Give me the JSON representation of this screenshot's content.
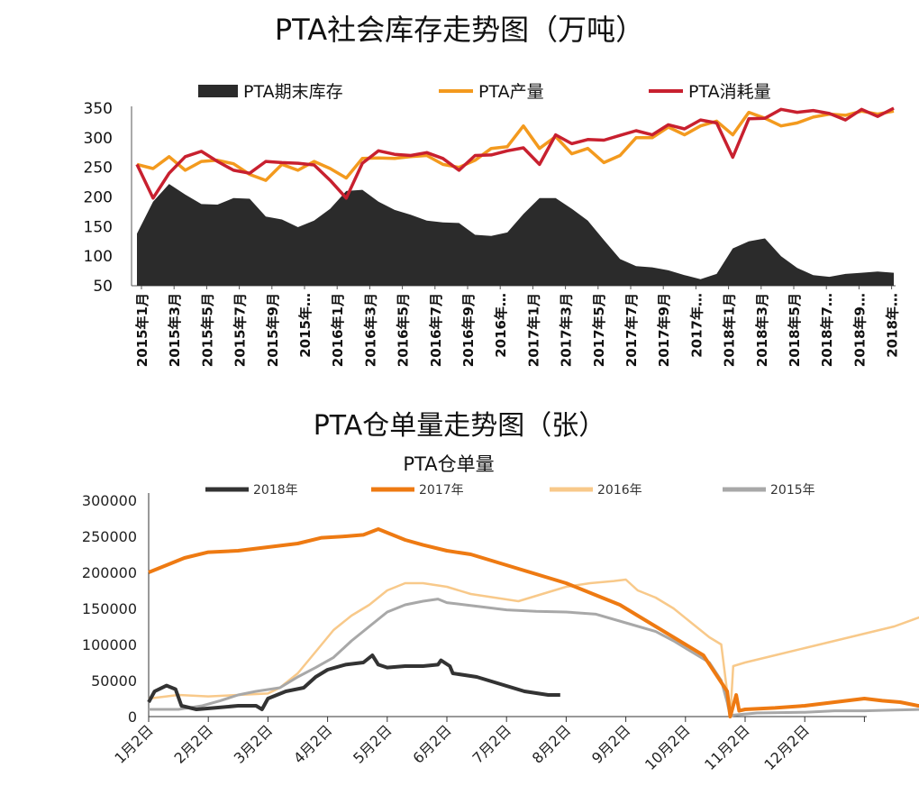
{
  "titles": {
    "top": "PTA社会库存走势图（万吨）",
    "bottom": "PTA仓单量走势图（张）"
  },
  "colors": {
    "inventory": "#2b2b2b",
    "production": "#f39a1e",
    "consumption": "#c8202f",
    "y2018": "#333333",
    "y2017": "#ee7a12",
    "y2016": "#f8c98a",
    "y2015": "#a8a8a8"
  },
  "chart_data": [
    {
      "type": "area",
      "title": "",
      "legend_position": "top",
      "ylim": [
        50,
        350
      ],
      "yticks": [
        "350",
        "300",
        "250",
        "200",
        "150",
        "100",
        "50"
      ],
      "x_tick_labels": [
        "2015年1月",
        "2015年3月",
        "2015年5月",
        "2015年7月",
        "2015年9月",
        "2015年…",
        "2016年1月",
        "2016年3月",
        "2016年5月",
        "2016年7月",
        "2016年9月",
        "2016年…",
        "2017年1月",
        "2017年3月",
        "2017年5月",
        "2017年7月",
        "2017年9月",
        "2017年…",
        "2018年1月",
        "2018年3月",
        "2018年5月",
        "2018年7…",
        "2018年9…",
        "2018年…"
      ],
      "series": [
        {
          "name": "PTA期末库存",
          "style": "area",
          "values": [
            138,
            192,
            222,
            204,
            188,
            187,
            198,
            197,
            167,
            162,
            149,
            160,
            180,
            210,
            212,
            192,
            178,
            170,
            160,
            157,
            156,
            136,
            134,
            140,
            171,
            198,
            198,
            180,
            160,
            127,
            95,
            83,
            81,
            76,
            68,
            61,
            70,
            113,
            125,
            130,
            100,
            80,
            68,
            65,
            70,
            72,
            74,
            72
          ]
        },
        {
          "name": "PTA产量",
          "style": "line",
          "values": [
            255,
            248,
            268,
            245,
            260,
            262,
            256,
            238,
            228,
            255,
            245,
            260,
            248,
            232,
            265,
            266,
            265,
            268,
            270,
            255,
            250,
            262,
            282,
            285,
            320,
            282,
            302,
            273,
            282,
            258,
            270,
            300,
            300,
            318,
            305,
            320,
            328,
            305,
            343,
            333,
            320,
            325,
            335,
            340,
            338,
            345,
            340,
            345
          ]
        },
        {
          "name": "PTA消耗量",
          "style": "line",
          "values": [
            255,
            198,
            240,
            268,
            277,
            260,
            245,
            240,
            260,
            258,
            257,
            254,
            228,
            198,
            257,
            278,
            272,
            270,
            275,
            265,
            245,
            270,
            271,
            278,
            283,
            255,
            305,
            290,
            297,
            296,
            304,
            312,
            305,
            322,
            315,
            330,
            325,
            267,
            332,
            333,
            348,
            343,
            346,
            341,
            330,
            348,
            336,
            350
          ]
        }
      ]
    },
    {
      "type": "line",
      "title": "PTA仓单量",
      "legend_position": "top",
      "ylim": [
        0,
        300000
      ],
      "yticks": [
        "300000",
        "250000",
        "200000",
        "150000",
        "100000",
        "50000",
        "0"
      ],
      "x_tick_labels": [
        "1月2日",
        "2月2日",
        "3月2日",
        "4月2日",
        "5月2日",
        "6月2日",
        "7月2日",
        "8月2日",
        "9月2日",
        "10月2日",
        "11月2日",
        "12月2日"
      ],
      "x_range_months": [
        0,
        12
      ],
      "series": [
        {
          "name": "2018年",
          "points": [
            [
              0,
              20000
            ],
            [
              0.1,
              35000
            ],
            [
              0.3,
              43000
            ],
            [
              0.45,
              38000
            ],
            [
              0.55,
              15000
            ],
            [
              0.8,
              10000
            ],
            [
              1.1,
              12000
            ],
            [
              1.5,
              15000
            ],
            [
              1.8,
              15000
            ],
            [
              1.9,
              10000
            ],
            [
              2.0,
              25000
            ],
            [
              2.3,
              35000
            ],
            [
              2.6,
              40000
            ],
            [
              2.8,
              55000
            ],
            [
              3.0,
              65000
            ],
            [
              3.3,
              72000
            ],
            [
              3.6,
              75000
            ],
            [
              3.75,
              85000
            ],
            [
              3.85,
              72000
            ],
            [
              4.0,
              68000
            ],
            [
              4.3,
              70000
            ],
            [
              4.6,
              70000
            ],
            [
              4.85,
              72000
            ],
            [
              4.9,
              78000
            ],
            [
              5.05,
              70000
            ],
            [
              5.1,
              60000
            ],
            [
              5.5,
              55000
            ],
            [
              5.9,
              45000
            ],
            [
              6.3,
              35000
            ],
            [
              6.7,
              30000
            ],
            [
              6.9,
              30000
            ]
          ]
        },
        {
          "name": "2017年",
          "points": [
            [
              0,
              200000
            ],
            [
              0.3,
              210000
            ],
            [
              0.6,
              220000
            ],
            [
              1.0,
              228000
            ],
            [
              1.5,
              230000
            ],
            [
              2.0,
              235000
            ],
            [
              2.5,
              240000
            ],
            [
              2.9,
              248000
            ],
            [
              3.3,
              250000
            ],
            [
              3.6,
              252000
            ],
            [
              3.85,
              260000
            ],
            [
              4.0,
              255000
            ],
            [
              4.3,
              245000
            ],
            [
              4.6,
              238000
            ],
            [
              5.0,
              230000
            ],
            [
              5.4,
              225000
            ],
            [
              5.8,
              215000
            ],
            [
              6.2,
              205000
            ],
            [
              6.6,
              195000
            ],
            [
              7.0,
              185000
            ],
            [
              7.3,
              175000
            ],
            [
              7.6,
              165000
            ],
            [
              7.9,
              155000
            ],
            [
              8.2,
              140000
            ],
            [
              8.5,
              125000
            ],
            [
              8.8,
              110000
            ],
            [
              9.0,
              100000
            ],
            [
              9.3,
              85000
            ],
            [
              9.5,
              60000
            ],
            [
              9.7,
              35000
            ],
            [
              9.75,
              0
            ],
            [
              9.85,
              30000
            ],
            [
              9.9,
              8000
            ],
            [
              10.0,
              10000
            ],
            [
              10.5,
              12000
            ],
            [
              11.0,
              15000
            ],
            [
              11.5,
              20000
            ],
            [
              12.0,
              25000
            ],
            [
              12.3,
              22000
            ],
            [
              12.6,
              20000
            ],
            [
              12.9,
              15000
            ],
            [
              13.2,
              14000
            ],
            [
              13.6,
              15000
            ],
            [
              13.85,
              20000
            ]
          ]
        },
        {
          "name": "2016年",
          "points": [
            [
              0,
              25000
            ],
            [
              0.5,
              30000
            ],
            [
              1.0,
              28000
            ],
            [
              1.5,
              30000
            ],
            [
              2.0,
              32000
            ],
            [
              2.2,
              40000
            ],
            [
              2.5,
              60000
            ],
            [
              2.8,
              90000
            ],
            [
              3.1,
              120000
            ],
            [
              3.4,
              140000
            ],
            [
              3.7,
              155000
            ],
            [
              4.0,
              175000
            ],
            [
              4.3,
              185000
            ],
            [
              4.6,
              185000
            ],
            [
              5.0,
              180000
            ],
            [
              5.4,
              170000
            ],
            [
              5.8,
              165000
            ],
            [
              6.2,
              160000
            ],
            [
              6.6,
              170000
            ],
            [
              7.0,
              180000
            ],
            [
              7.4,
              185000
            ],
            [
              7.8,
              188000
            ],
            [
              8.0,
              190000
            ],
            [
              8.2,
              175000
            ],
            [
              8.5,
              165000
            ],
            [
              8.8,
              150000
            ],
            [
              9.1,
              130000
            ],
            [
              9.4,
              110000
            ],
            [
              9.6,
              100000
            ],
            [
              9.75,
              0
            ],
            [
              9.8,
              70000
            ],
            [
              10.0,
              75000
            ],
            [
              10.5,
              85000
            ],
            [
              11.0,
              95000
            ],
            [
              11.5,
              105000
            ],
            [
              12.0,
              115000
            ],
            [
              12.5,
              125000
            ],
            [
              13.0,
              140000
            ],
            [
              13.5,
              160000
            ],
            [
              13.85,
              195000
            ]
          ]
        },
        {
          "name": "2015年",
          "points": [
            [
              0,
              10000
            ],
            [
              0.5,
              10000
            ],
            [
              0.9,
              15000
            ],
            [
              1.2,
              22000
            ],
            [
              1.5,
              30000
            ],
            [
              1.8,
              35000
            ],
            [
              2.2,
              40000
            ],
            [
              2.5,
              55000
            ],
            [
              2.8,
              68000
            ],
            [
              3.1,
              82000
            ],
            [
              3.4,
              105000
            ],
            [
              3.7,
              125000
            ],
            [
              4.0,
              145000
            ],
            [
              4.3,
              155000
            ],
            [
              4.6,
              160000
            ],
            [
              4.85,
              163000
            ],
            [
              5.0,
              158000
            ],
            [
              5.3,
              155000
            ],
            [
              5.6,
              152000
            ],
            [
              6.0,
              148000
            ],
            [
              6.5,
              146000
            ],
            [
              7.0,
              145000
            ],
            [
              7.5,
              142000
            ],
            [
              8.0,
              130000
            ],
            [
              8.5,
              118000
            ],
            [
              8.8,
              105000
            ],
            [
              9.1,
              90000
            ],
            [
              9.4,
              75000
            ],
            [
              9.6,
              50000
            ],
            [
              9.7,
              20000
            ],
            [
              9.75,
              0
            ],
            [
              9.8,
              2000
            ],
            [
              10.2,
              5000
            ],
            [
              11.0,
              6000
            ],
            [
              11.5,
              8000
            ],
            [
              12.0,
              8000
            ],
            [
              12.5,
              9000
            ],
            [
              13.0,
              10000
            ],
            [
              13.5,
              12000
            ],
            [
              13.85,
              20000
            ]
          ]
        }
      ]
    }
  ]
}
